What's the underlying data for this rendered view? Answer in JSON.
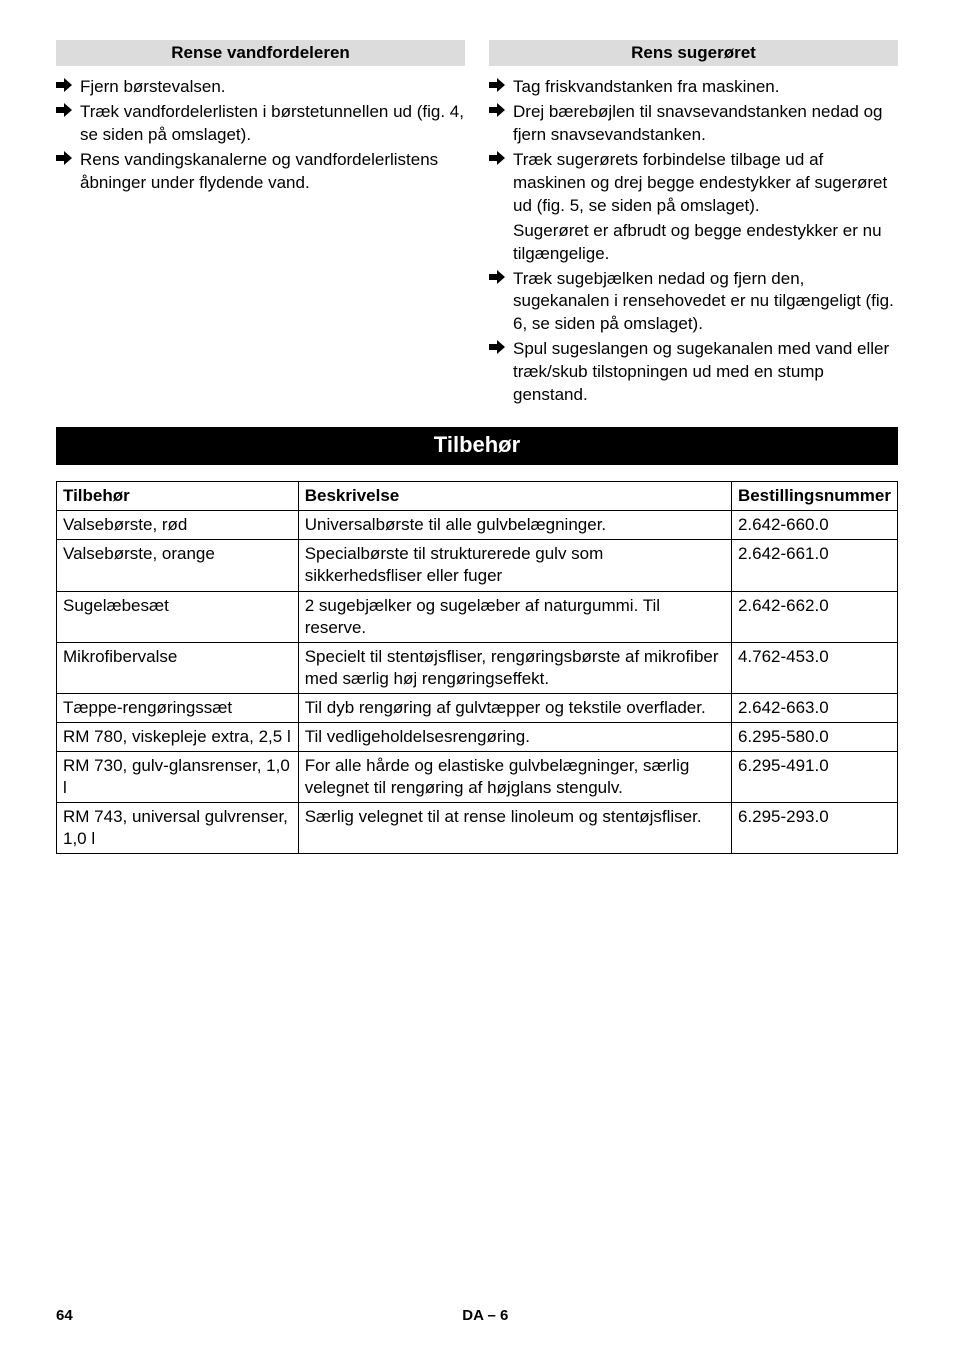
{
  "left": {
    "heading": "Rense vandfordeleren",
    "items": [
      {
        "text": "Fjern børstevalsen."
      },
      {
        "text": "Træk vandfordelerlisten i børstetunnellen ud (fig. 4, se siden på omslaget)."
      },
      {
        "text": "Rens vandingskanalerne og vandfordelerlistens åbninger under flydende vand."
      }
    ]
  },
  "right": {
    "heading": "Rens sugerøret",
    "items": [
      {
        "text": "Tag friskvandstanken fra maskinen."
      },
      {
        "text": "Drej bærebøjlen til snavsevandstanken nedad og fjern snavsevandstanken."
      },
      {
        "text": "Træk sugerørets forbindelse tilbage ud af maskinen og drej begge endestykker af sugerøret ud (fig. 5, se siden på omslaget).",
        "after": "Sugerøret er afbrudt og begge endestykker er nu tilgængelige."
      },
      {
        "text": "Træk sugebjælken nedad og fjern den, sugekanalen i rensehovedet er nu tilgængeligt (fig. 6, se siden på omslaget)."
      },
      {
        "text": "Spul sugeslangen og sugekanalen med vand eller træk/skub tilstopningen ud med en stump genstand."
      }
    ]
  },
  "section_heading": "Tilbehør",
  "table": {
    "headers": {
      "c0": "Tilbehør",
      "c1": "Beskrivelse",
      "c2": "Bestillingsnummer"
    },
    "rows": [
      {
        "c0": "Valsebørste, rød",
        "c1": "Universalbørste til alle gulvbelægninger.",
        "c2": "2.642-660.0"
      },
      {
        "c0": "Valsebørste, orange",
        "c1": "Specialbørste til strukturerede gulv som sikkerhedsfliser eller fuger",
        "c2": "2.642-661.0"
      },
      {
        "c0": "Sugelæbesæt",
        "c1": "2 sugebjælker og sugelæber af naturgummi. Til reserve.",
        "c2": "2.642-662.0"
      },
      {
        "c0": "Mikrofibervalse",
        "c1": "Specielt til stentøjsfliser, rengøringsbørste af mikrofiber med særlig høj rengøringseffekt.",
        "c2": "4.762-453.0"
      },
      {
        "c0": "Tæppe-rengøringssæt",
        "c1": "Til dyb rengøring af gulvtæpper og tekstile overflader.",
        "c2": "2.642-663.0"
      },
      {
        "c0": "RM 780, viskepleje extra, 2,5 l",
        "c1": "Til vedligeholdelsesrengøring.",
        "c2": "6.295-580.0"
      },
      {
        "c0": "RM 730, gulv-glansrenser, 1,0 l",
        "c1": "For alle hårde og elastiske gulvbelægninger, særlig velegnet til rengøring af højglans stengulv.",
        "c2": "6.295-491.0"
      },
      {
        "c0": "RM 743, universal gulvrenser, 1,0 l",
        "c1": "Særlig velegnet til at rense linoleum og stentøjsfliser.",
        "c2": "6.295-293.0"
      }
    ]
  },
  "footer": {
    "page": "64",
    "lang": "DA – 6"
  },
  "style": {
    "arrow_fill": "#000000",
    "sub_header_bg": "#dcdcdc",
    "main_header_bg": "#000000",
    "main_header_fg": "#ffffff"
  }
}
